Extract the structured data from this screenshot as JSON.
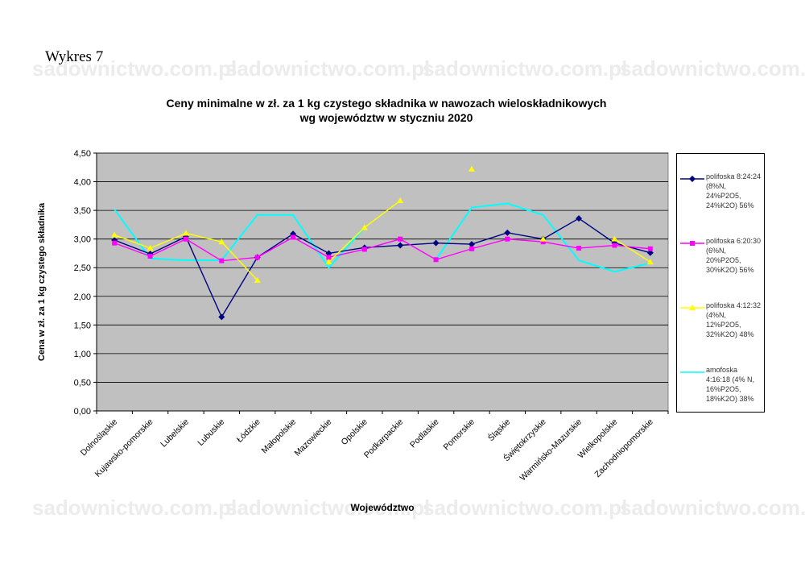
{
  "heading": "Wykres 7",
  "watermark_text": "sadownictwo.com.pl",
  "chart_data": {
    "type": "line",
    "title": "Ceny minimalne  w zł. za 1 kg czystego składnika w nawozach wieloskładnikowych",
    "subtitle": "wg województw w styczniu 2020",
    "xlabel": "Województwo",
    "ylabel": "Cena w zł. za 1 kg czystego składnika",
    "ylim": [
      0,
      4.5
    ],
    "yticks": [
      "0,00",
      "0,50",
      "1,00",
      "1,50",
      "2,00",
      "2,50",
      "3,00",
      "3,50",
      "4,00",
      "4,50"
    ],
    "grid": true,
    "plot_background": "#c0c0c0",
    "legend_position": "right",
    "categories": [
      "Dolnośląskie",
      "Kujawsko-pomorskie",
      "Lubelskie",
      "Lubuskie",
      "Łódzkie",
      "Małopolskie",
      "Mazowieckie",
      "Opolskie",
      "Podkarpackie",
      "Podlaskie",
      "Pomorskie",
      "Śląskie",
      "Świętokrzyskie",
      "Warmińsko-Mazurskie",
      "Wielkopolskie",
      "Zachodniopomorskie"
    ],
    "series": [
      {
        "name_lines": [
          "polifoska 8:24:24",
          "(8%N,",
          "24%P2O5,",
          "24%K2O) 56%"
        ],
        "color": "#000080",
        "marker": "diamond",
        "values": [
          2.98,
          2.74,
          3.04,
          1.64,
          2.68,
          3.09,
          2.75,
          2.85,
          2.89,
          2.93,
          2.91,
          3.11,
          3.0,
          3.36,
          2.93,
          2.76
        ]
      },
      {
        "name_lines": [
          "polifoska 6:20:30",
          "(6%N,",
          "20%P2O5,",
          "30%K2O) 56%"
        ],
        "color": "#ff00ff",
        "marker": "square",
        "values": [
          2.93,
          2.7,
          3.0,
          2.62,
          2.68,
          3.03,
          2.68,
          2.82,
          3.0,
          2.64,
          2.83,
          3.0,
          2.95,
          2.84,
          2.89,
          2.83
        ]
      },
      {
        "name_lines": [
          "polifoska 4:12:32",
          "(4%N,",
          "12%P2O5,",
          "32%K2O) 48%"
        ],
        "color": "#ffff00",
        "marker": "triangle",
        "values": [
          3.07,
          2.84,
          3.1,
          2.95,
          2.28,
          null,
          2.6,
          3.2,
          3.67,
          null,
          4.22,
          null,
          3.0,
          null,
          3.0,
          2.6
        ]
      },
      {
        "name_lines": [
          "amofoska",
          "4:16:18 (4% N,",
          "16%P2O5,",
          "18%K2O) 38%"
        ],
        "color": "#00ffff",
        "marker": "none",
        "values": [
          3.52,
          2.66,
          2.63,
          2.63,
          3.42,
          3.42,
          2.5,
          3.2,
          null,
          2.64,
          3.55,
          3.62,
          3.42,
          2.63,
          2.43,
          2.58
        ]
      }
    ]
  }
}
